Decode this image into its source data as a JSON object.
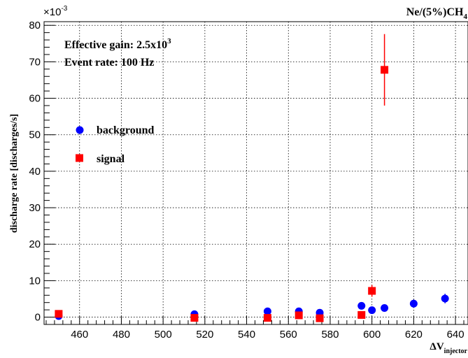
{
  "chart_data": {
    "type": "scatter",
    "title": "Ne/(5%)CH",
    "title_subscript": "4",
    "xlabel": "ΔV",
    "xlabel_subscript": "injector",
    "ylabel": "discharge rate [discharges/s]",
    "y_exponent_label": "×10",
    "y_exponent_power": "-3",
    "xlim": [
      443,
      646
    ],
    "ylim": [
      -2,
      81
    ],
    "xticks": [
      460,
      480,
      500,
      520,
      540,
      560,
      580,
      600,
      620,
      640
    ],
    "yticks": [
      0,
      10,
      20,
      30,
      40,
      50,
      60,
      70,
      80
    ],
    "grid": true,
    "legend_placement": "left",
    "annotations": {
      "gain_text": "Effective gain: 2.5x10",
      "gain_power": "3",
      "rate_text": "Event rate: 100 Hz"
    },
    "colors": {
      "background": "#0000ff",
      "signal": "#ff0000"
    },
    "series": [
      {
        "name": "background",
        "marker": "circle",
        "x": [
          450,
          515,
          550,
          565,
          575,
          595,
          600,
          606,
          620,
          635
        ],
        "y": [
          0.3,
          0.8,
          1.6,
          1.6,
          1.2,
          3.1,
          1.9,
          2.5,
          3.7,
          5.1
        ],
        "yerr": [
          0.3,
          0.4,
          0.5,
          0.5,
          0.5,
          0.6,
          0.6,
          0.7,
          1.1,
          1.3
        ]
      },
      {
        "name": "signal",
        "marker": "square",
        "x": [
          450,
          515,
          550,
          565,
          575,
          595,
          600,
          606
        ],
        "y": [
          0.9,
          -0.2,
          -0.2,
          0.5,
          -0.3,
          0.6,
          7.2,
          67.8
        ],
        "yerr": [
          0.4,
          0.3,
          0.3,
          0.3,
          0.3,
          0.4,
          1.6,
          9.8
        ]
      }
    ]
  }
}
